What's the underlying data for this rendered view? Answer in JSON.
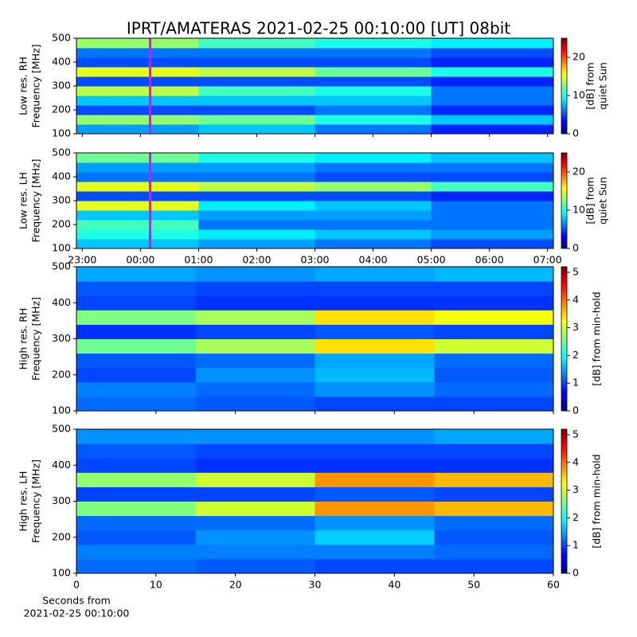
{
  "chart_data": [
    {
      "type": "heatmap",
      "title": "IPRT/AMATERAS 2021-02-25 00:10:00 [UT]   08bit",
      "ylabel": [
        "Low res. RH",
        "Frequency [MHz]"
      ],
      "xlim": [
        -1.1,
        7.1
      ],
      "xticks": [
        -1,
        0,
        1,
        2,
        3,
        4,
        5,
        6,
        7
      ],
      "xticklabels": false,
      "ylim": [
        100,
        500
      ],
      "yticks": [
        100,
        200,
        300,
        400,
        500
      ],
      "xbins": [
        -1.1,
        1,
        3,
        5,
        7.1
      ],
      "ybins": [
        100,
        140,
        180,
        220,
        260,
        300,
        340,
        380,
        420,
        460,
        500
      ],
      "values": [
        [
          7,
          8,
          6,
          4
        ],
        [
          13,
          12,
          10,
          8
        ],
        [
          5,
          5,
          6,
          4
        ],
        [
          8,
          8,
          8,
          6
        ],
        [
          14,
          11,
          10,
          6
        ],
        [
          5,
          5,
          5,
          4
        ],
        [
          15,
          14,
          12,
          10
        ],
        [
          5,
          5,
          5,
          4
        ],
        [
          6,
          6,
          6,
          5
        ],
        [
          13,
          11,
          10,
          9
        ]
      ],
      "marker": {
        "x": 0.1667,
        "color": "#ff00ff"
      },
      "colorbar": {
        "label": [
          "[dB] from",
          "quiet Sun"
        ],
        "lim": [
          0,
          25
        ],
        "ticks": [
          0,
          10,
          20
        ]
      }
    },
    {
      "type": "heatmap",
      "ylabel": [
        "Low res. LH",
        "Frequency [MHz]"
      ],
      "xlim": [
        -1.1,
        7.1
      ],
      "xticks": [
        {
          "value": -1,
          "label": "23:00"
        },
        {
          "value": 0,
          "label": "00:00"
        },
        {
          "value": 1,
          "label": "01:00"
        },
        {
          "value": 2,
          "label": "02:00"
        },
        {
          "value": 3,
          "label": "03:00"
        },
        {
          "value": 4,
          "label": "04:00"
        },
        {
          "value": 5,
          "label": "05:00"
        },
        {
          "value": 6,
          "label": "06:00"
        },
        {
          "value": 7,
          "label": "07:00"
        }
      ],
      "xticklabels": true,
      "ylim": [
        100,
        500
      ],
      "yticks": [
        100,
        200,
        300,
        400,
        500
      ],
      "xbins": [
        -1.1,
        1,
        3,
        5,
        7.1
      ],
      "ybins": [
        100,
        140,
        180,
        220,
        260,
        300,
        340,
        380,
        420,
        460,
        500
      ],
      "values": [
        [
          8,
          7,
          6,
          5
        ],
        [
          10,
          9,
          8,
          7
        ],
        [
          11,
          6,
          6,
          6
        ],
        [
          8,
          7,
          7,
          6
        ],
        [
          15,
          9,
          8,
          6
        ],
        [
          5,
          5,
          5,
          4
        ],
        [
          15,
          14,
          13,
          11
        ],
        [
          6,
          6,
          5,
          5
        ],
        [
          7,
          7,
          6,
          6
        ],
        [
          12,
          10,
          9,
          8
        ]
      ],
      "marker": {
        "x": 0.1667,
        "color": "#ff00ff"
      },
      "colorbar": {
        "label": [
          "[dB] from",
          "quiet Sun"
        ],
        "lim": [
          0,
          25
        ],
        "ticks": [
          0,
          10,
          20
        ]
      }
    },
    {
      "type": "heatmap",
      "ylabel": [
        "High res. RH",
        "Frequency [MHz]"
      ],
      "xlim": [
        0,
        60
      ],
      "xticks": [
        0,
        10,
        20,
        30,
        40,
        50,
        60
      ],
      "xticklabels": false,
      "ylim": [
        100,
        500
      ],
      "yticks": [
        100,
        200,
        300,
        400,
        500
      ],
      "xbins": [
        0,
        15,
        30,
        45,
        60
      ],
      "ybins": [
        100,
        140,
        180,
        220,
        260,
        300,
        340,
        380,
        420,
        460,
        500
      ],
      "values": [
        [
          1.2,
          1.1,
          1.0,
          1.0
        ],
        [
          1.3,
          1.2,
          1.4,
          1.2
        ],
        [
          1.0,
          1.4,
          1.6,
          1.1
        ],
        [
          1.1,
          1.2,
          1.5,
          1.2
        ],
        [
          2.5,
          2.8,
          3.4,
          3.0
        ],
        [
          0.9,
          1.0,
          1.1,
          1.0
        ],
        [
          2.6,
          2.8,
          3.4,
          3.2
        ],
        [
          1.0,
          0.9,
          0.9,
          0.9
        ],
        [
          1.1,
          1.0,
          1.0,
          1.0
        ],
        [
          1.5,
          1.4,
          1.5,
          1.6
        ]
      ],
      "colorbar": {
        "label": [
          "[dB] from min-hold"
        ],
        "lim": [
          0,
          5.2
        ],
        "ticks": [
          0,
          1,
          2,
          3,
          4,
          5
        ]
      }
    },
    {
      "type": "heatmap",
      "ylabel": [
        "High res. LH",
        "Frequency [MHz]"
      ],
      "xlabel": [
        "Seconds from",
        "2021-02-25 00:10:00"
      ],
      "xlim": [
        0,
        60
      ],
      "xticks": [
        0,
        10,
        20,
        30,
        40,
        50,
        60
      ],
      "xticklabels": true,
      "ylim": [
        100,
        500
      ],
      "yticks": [
        100,
        200,
        300,
        400,
        500
      ],
      "xbins": [
        0,
        15,
        30,
        45,
        60
      ],
      "ybins": [
        100,
        140,
        180,
        220,
        260,
        300,
        340,
        380,
        420,
        460,
        500
      ],
      "values": [
        [
          1.2,
          1.1,
          1.0,
          1.0
        ],
        [
          1.3,
          1.3,
          1.3,
          1.2
        ],
        [
          1.1,
          1.4,
          1.7,
          1.1
        ],
        [
          1.2,
          1.2,
          1.4,
          1.2
        ],
        [
          2.6,
          3.0,
          3.8,
          3.6
        ],
        [
          1.0,
          1.0,
          1.1,
          1.0
        ],
        [
          2.7,
          3.0,
          3.8,
          3.6
        ],
        [
          1.0,
          0.9,
          0.9,
          0.9
        ],
        [
          1.1,
          1.0,
          1.0,
          1.0
        ],
        [
          1.4,
          1.4,
          1.4,
          1.5
        ]
      ],
      "colorbar": {
        "label": [
          "[dB] from min-hold"
        ],
        "lim": [
          0,
          5.2
        ],
        "ticks": [
          0,
          1,
          2,
          3,
          4,
          5
        ]
      }
    }
  ]
}
